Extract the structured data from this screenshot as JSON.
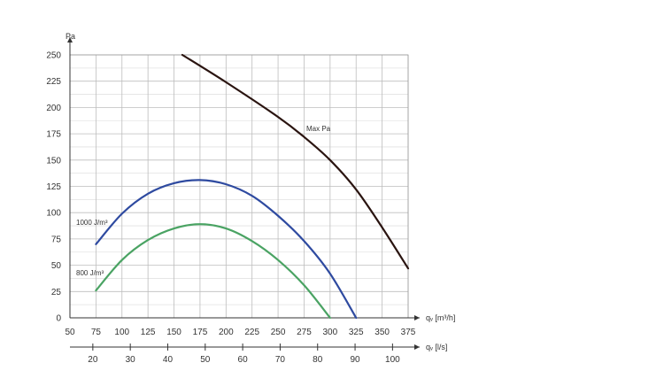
{
  "chart_data": {
    "type": "line",
    "y_axis": {
      "label": "Pa",
      "range": [
        0,
        250
      ],
      "ticks": [
        0,
        25,
        50,
        75,
        100,
        125,
        150,
        175,
        200,
        225,
        250
      ]
    },
    "x_axis_primary": {
      "label": "qᵥ [m³/h]",
      "range": [
        50,
        375
      ],
      "ticks": [
        50,
        75,
        100,
        125,
        150,
        175,
        200,
        225,
        250,
        275,
        300,
        325,
        350,
        375
      ]
    },
    "x_axis_secondary": {
      "label": "qᵥ [l/s]",
      "ticks": [
        20,
        30,
        40,
        50,
        60,
        70,
        80,
        90,
        100
      ]
    },
    "grid": true,
    "series": [
      {
        "name": "Max Pa",
        "color": "#2a1410",
        "points": [
          [
            158,
            250
          ],
          [
            200,
            224
          ],
          [
            250,
            191
          ],
          [
            275,
            172
          ],
          [
            300,
            150
          ],
          [
            325,
            122
          ],
          [
            350,
            86
          ],
          [
            375,
            47
          ]
        ]
      },
      {
        "name": "1000 J/m³",
        "color": "#2e4aa0",
        "points": [
          [
            75,
            70
          ],
          [
            100,
            99
          ],
          [
            125,
            118
          ],
          [
            150,
            128
          ],
          [
            175,
            131
          ],
          [
            200,
            127
          ],
          [
            225,
            116
          ],
          [
            250,
            97
          ],
          [
            275,
            73
          ],
          [
            300,
            42
          ],
          [
            325,
            0
          ]
        ]
      },
      {
        "name": "800 J/m³",
        "color": "#4aa363",
        "points": [
          [
            75,
            26
          ],
          [
            100,
            55
          ],
          [
            125,
            74
          ],
          [
            150,
            85
          ],
          [
            175,
            89
          ],
          [
            200,
            85
          ],
          [
            225,
            73
          ],
          [
            250,
            55
          ],
          [
            275,
            31
          ],
          [
            300,
            0
          ]
        ]
      }
    ]
  }
}
